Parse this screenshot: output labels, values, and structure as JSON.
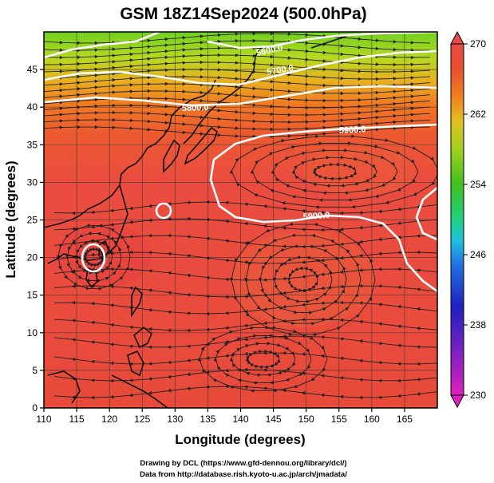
{
  "title": "GSM 18Z14Sep2024 (500.0hPa)",
  "x_axis": {
    "label": "Longitude (degrees)",
    "ticks": [
      "110",
      "115",
      "120",
      "125",
      "130",
      "135",
      "140",
      "145",
      "150",
      "155",
      "160",
      "165"
    ],
    "range": [
      110,
      170
    ]
  },
  "y_axis": {
    "label": "Latitude (degrees)",
    "ticks": [
      "0",
      "5",
      "10",
      "15",
      "20",
      "25",
      "30",
      "35",
      "40",
      "45"
    ],
    "range": [
      0,
      50
    ]
  },
  "colorbar": {
    "ticks": [
      "270",
      "262",
      "254",
      "246",
      "238",
      "230"
    ],
    "range": [
      230,
      270
    ],
    "colors": [
      "#e020c0",
      "#8020c0",
      "#2020c0",
      "#2070e0",
      "#20c0e0",
      "#20d080",
      "#40c020",
      "#a0d020",
      "#e0c020",
      "#f08020",
      "#e85030",
      "#e84a48"
    ]
  },
  "contours": [
    {
      "label": "5600.0"
    },
    {
      "label": "5700.0"
    },
    {
      "label": "5800.0"
    },
    {
      "label": "5900.0"
    },
    {
      "label": "5900.0"
    }
  ],
  "credits": {
    "line1": "Drawing by DCL (https://www.gfd-dennou.org/library/dcl/)",
    "line2": "Data from http://database.rish.kyoto-u.ac.jp/arch/jmadata/"
  }
}
